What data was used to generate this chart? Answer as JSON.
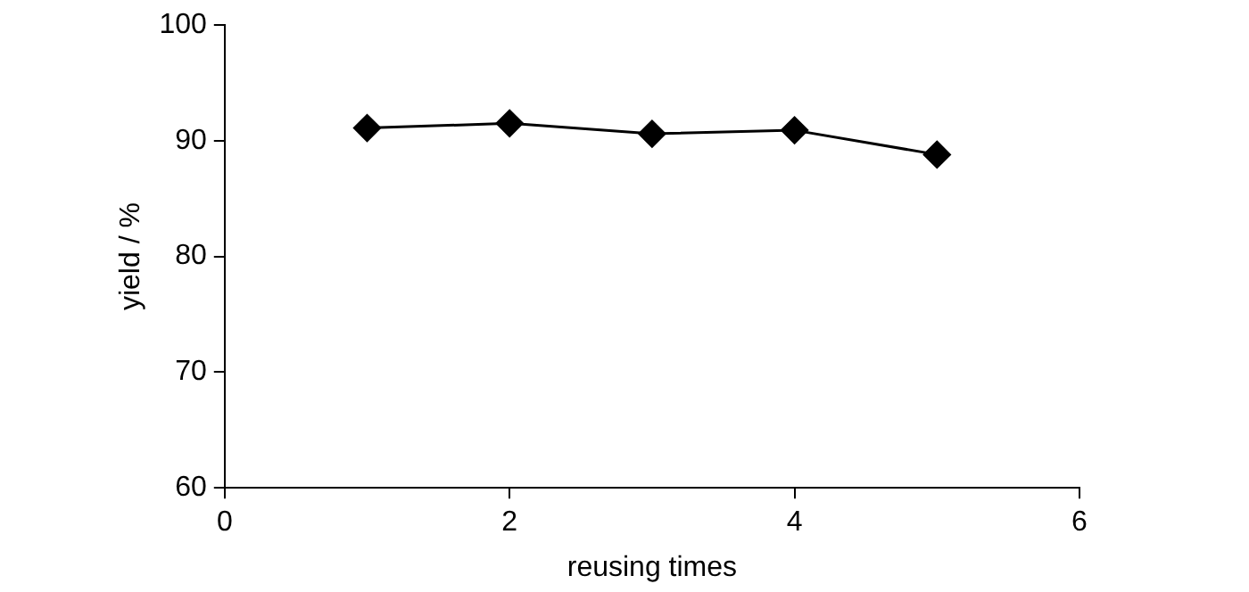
{
  "chart_data": {
    "type": "line",
    "xlabel": "reusing times",
    "ylabel": "yield / %",
    "x": [
      1,
      2,
      3,
      4,
      5
    ],
    "series": [
      {
        "color": "#000000",
        "values": [
          91.1,
          91.5,
          90.6,
          90.9,
          88.8
        ]
      }
    ],
    "xlim": [
      0,
      6
    ],
    "xticks": [
      0,
      2,
      4,
      6
    ],
    "ylim": [
      60,
      100
    ],
    "yticks": [
      60,
      70,
      80,
      90,
      100
    ],
    "grid": false,
    "legend": false,
    "marker": "diamond",
    "line_style": "solid"
  }
}
